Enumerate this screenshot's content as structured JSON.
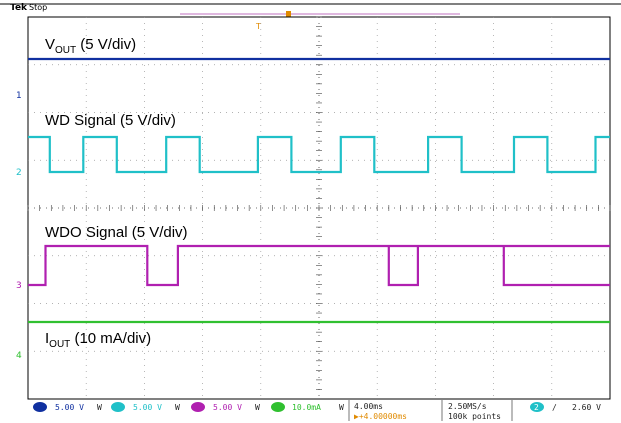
{
  "header": {
    "brand": "Tek",
    "status": "Stop"
  },
  "chart_data": {
    "type": "line",
    "grid": true,
    "x_divisions": 10,
    "y_divisions": 8,
    "time_units": "ms",
    "series": [
      {
        "name": "V",
        "subscript": "OUT",
        "suffix": " (5 V/div)",
        "channel": "1",
        "color": "#1030a0",
        "levels": [
          "high"
        ],
        "points": [
          [
            0,
            1
          ],
          [
            40,
            1
          ]
        ]
      },
      {
        "name": "WD Signal",
        "suffix": " (5 V/div)",
        "channel": "2",
        "color": "#20c0c8",
        "points": [
          [
            0,
            1
          ],
          [
            1.5,
            1
          ],
          [
            1.5,
            0
          ],
          [
            3.8,
            0
          ],
          [
            3.8,
            1
          ],
          [
            6.1,
            1
          ],
          [
            6.1,
            0
          ],
          [
            9.5,
            0
          ],
          [
            9.5,
            1
          ],
          [
            11.8,
            1
          ],
          [
            11.8,
            0
          ],
          [
            15.8,
            0
          ],
          [
            15.8,
            1
          ],
          [
            18.1,
            1
          ],
          [
            18.1,
            0
          ],
          [
            21.5,
            0
          ],
          [
            21.5,
            1
          ],
          [
            23.8,
            1
          ],
          [
            23.8,
            0
          ],
          [
            27.5,
            0
          ],
          [
            27.5,
            1
          ],
          [
            29.8,
            1
          ],
          [
            29.8,
            0
          ],
          [
            33.4,
            0
          ],
          [
            33.4,
            1
          ],
          [
            35.7,
            1
          ],
          [
            35.7,
            0
          ],
          [
            39,
            0
          ],
          [
            39,
            1
          ],
          [
            40,
            1
          ]
        ]
      },
      {
        "name": "WDO Signal",
        "suffix": " (5 V/div)",
        "channel": "3",
        "color": "#b020b0",
        "points": [
          [
            0,
            0
          ],
          [
            1.2,
            0
          ],
          [
            1.2,
            1
          ],
          [
            8.2,
            1
          ],
          [
            8.2,
            0
          ],
          [
            10.3,
            0
          ],
          [
            10.3,
            1
          ],
          [
            40,
            1
          ]
        ],
        "second_pulse": [
          [
            24.8,
            1
          ],
          [
            24.8,
            0
          ],
          [
            26.8,
            0
          ],
          [
            26.8,
            1
          ]
        ],
        "third_pulse": [
          [
            32.7,
            1
          ],
          [
            32.7,
            0
          ],
          [
            40,
            0
          ]
        ]
      },
      {
        "name": "I",
        "subscript": "OUT",
        "suffix": " (10 mA/div)",
        "channel": "4",
        "color": "#30c030",
        "points": [
          [
            0,
            1
          ],
          [
            40,
            1
          ]
        ]
      }
    ]
  },
  "status_bar": {
    "ch1": "5.00 V",
    "ch1_coupling": "W",
    "ch2": "5.00 V",
    "ch2_coupling": "W",
    "ch3": "5.00 V",
    "ch3_coupling": "W",
    "ch4": "10.0mA",
    "ch4_coupling": "W",
    "timebase": "4.00ms",
    "delay": "▶+4.00000ms",
    "sample_rate": "2.50MS/s",
    "record_length": "100k points",
    "trigger_source": "2",
    "trigger_slope": "∕",
    "trigger_level": "2.60 V"
  },
  "channel_markers": {
    "ch1": "1",
    "ch2": "2",
    "ch3": "3",
    "ch4": "4"
  },
  "colors": {
    "ch1": "#1030a0",
    "ch2": "#20c0c8",
    "ch3": "#b020b0",
    "ch4": "#30c030",
    "trigger": "#e08a00"
  }
}
